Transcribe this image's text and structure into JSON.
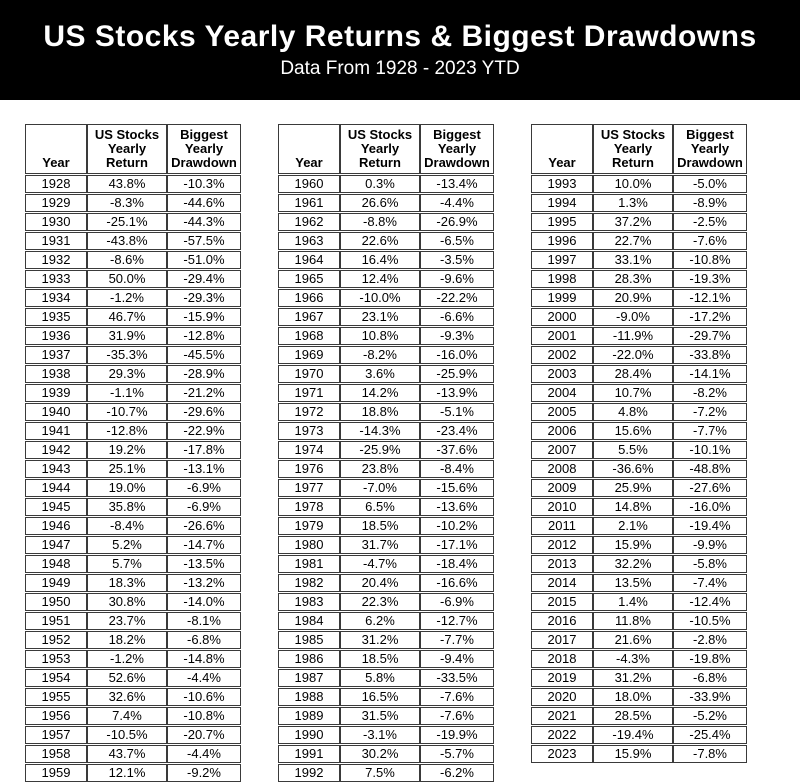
{
  "header": {
    "title": "US Stocks Yearly Returns & Biggest Drawdowns",
    "subtitle": "Data From 1928 - 2023 YTD"
  },
  "colors": {
    "positive_cell": "#d8f0cd",
    "negative_cell": "#f4b8ba",
    "banner_bg": "#000000",
    "banner_text": "#ffffff",
    "cell_border": "#3a3a3a",
    "highlight_year_bg": "#000000",
    "highlight_year_text": "#ffffff"
  },
  "chart_data": {
    "type": "table",
    "title": "US Stocks Yearly Returns & Biggest Drawdowns",
    "subtitle": "Data From 1928 - 2023 YTD",
    "column_headers": [
      [
        "Year"
      ],
      [
        "US Stocks",
        "Yearly",
        "Return"
      ],
      [
        "Biggest",
        "Yearly",
        "Drawdown"
      ]
    ],
    "highlighted_year": "2023",
    "tables": [
      {
        "rows": [
          [
            "1928",
            "43.8%",
            "-10.3%"
          ],
          [
            "1929",
            "-8.3%",
            "-44.6%"
          ],
          [
            "1930",
            "-25.1%",
            "-44.3%"
          ],
          [
            "1931",
            "-43.8%",
            "-57.5%"
          ],
          [
            "1932",
            "-8.6%",
            "-51.0%"
          ],
          [
            "1933",
            "50.0%",
            "-29.4%"
          ],
          [
            "1934",
            "-1.2%",
            "-29.3%"
          ],
          [
            "1935",
            "46.7%",
            "-15.9%"
          ],
          [
            "1936",
            "31.9%",
            "-12.8%"
          ],
          [
            "1937",
            "-35.3%",
            "-45.5%"
          ],
          [
            "1938",
            "29.3%",
            "-28.9%"
          ],
          [
            "1939",
            "-1.1%",
            "-21.2%"
          ],
          [
            "1940",
            "-10.7%",
            "-29.6%"
          ],
          [
            "1941",
            "-12.8%",
            "-22.9%"
          ],
          [
            "1942",
            "19.2%",
            "-17.8%"
          ],
          [
            "1943",
            "25.1%",
            "-13.1%"
          ],
          [
            "1944",
            "19.0%",
            "-6.9%"
          ],
          [
            "1945",
            "35.8%",
            "-6.9%"
          ],
          [
            "1946",
            "-8.4%",
            "-26.6%"
          ],
          [
            "1947",
            "5.2%",
            "-14.7%"
          ],
          [
            "1948",
            "5.7%",
            "-13.5%"
          ],
          [
            "1949",
            "18.3%",
            "-13.2%"
          ],
          [
            "1950",
            "30.8%",
            "-14.0%"
          ],
          [
            "1951",
            "23.7%",
            "-8.1%"
          ],
          [
            "1952",
            "18.2%",
            "-6.8%"
          ],
          [
            "1953",
            "-1.2%",
            "-14.8%"
          ],
          [
            "1954",
            "52.6%",
            "-4.4%"
          ],
          [
            "1955",
            "32.6%",
            "-10.6%"
          ],
          [
            "1956",
            "7.4%",
            "-10.8%"
          ],
          [
            "1957",
            "-10.5%",
            "-20.7%"
          ],
          [
            "1958",
            "43.7%",
            "-4.4%"
          ],
          [
            "1959",
            "12.1%",
            "-9.2%"
          ]
        ]
      },
      {
        "rows": [
          [
            "1960",
            "0.3%",
            "-13.4%"
          ],
          [
            "1961",
            "26.6%",
            "-4.4%"
          ],
          [
            "1962",
            "-8.8%",
            "-26.9%"
          ],
          [
            "1963",
            "22.6%",
            "-6.5%"
          ],
          [
            "1964",
            "16.4%",
            "-3.5%"
          ],
          [
            "1965",
            "12.4%",
            "-9.6%"
          ],
          [
            "1966",
            "-10.0%",
            "-22.2%"
          ],
          [
            "1967",
            "23.1%",
            "-6.6%"
          ],
          [
            "1968",
            "10.8%",
            "-9.3%"
          ],
          [
            "1969",
            "-8.2%",
            "-16.0%"
          ],
          [
            "1970",
            "3.6%",
            "-25.9%"
          ],
          [
            "1971",
            "14.2%",
            "-13.9%"
          ],
          [
            "1972",
            "18.8%",
            "-5.1%"
          ],
          [
            "1973",
            "-14.3%",
            "-23.4%"
          ],
          [
            "1974",
            "-25.9%",
            "-37.6%"
          ],
          [
            "1976",
            "23.8%",
            "-8.4%"
          ],
          [
            "1977",
            "-7.0%",
            "-15.6%"
          ],
          [
            "1978",
            "6.5%",
            "-13.6%"
          ],
          [
            "1979",
            "18.5%",
            "-10.2%"
          ],
          [
            "1980",
            "31.7%",
            "-17.1%"
          ],
          [
            "1981",
            "-4.7%",
            "-18.4%"
          ],
          [
            "1982",
            "20.4%",
            "-16.6%"
          ],
          [
            "1983",
            "22.3%",
            "-6.9%"
          ],
          [
            "1984",
            "6.2%",
            "-12.7%"
          ],
          [
            "1985",
            "31.2%",
            "-7.7%"
          ],
          [
            "1986",
            "18.5%",
            "-9.4%"
          ],
          [
            "1987",
            "5.8%",
            "-33.5%"
          ],
          [
            "1988",
            "16.5%",
            "-7.6%"
          ],
          [
            "1989",
            "31.5%",
            "-7.6%"
          ],
          [
            "1990",
            "-3.1%",
            "-19.9%"
          ],
          [
            "1991",
            "30.2%",
            "-5.7%"
          ],
          [
            "1992",
            "7.5%",
            "-6.2%"
          ]
        ]
      },
      {
        "rows": [
          [
            "1993",
            "10.0%",
            "-5.0%"
          ],
          [
            "1994",
            "1.3%",
            "-8.9%"
          ],
          [
            "1995",
            "37.2%",
            "-2.5%"
          ],
          [
            "1996",
            "22.7%",
            "-7.6%"
          ],
          [
            "1997",
            "33.1%",
            "-10.8%"
          ],
          [
            "1998",
            "28.3%",
            "-19.3%"
          ],
          [
            "1999",
            "20.9%",
            "-12.1%"
          ],
          [
            "2000",
            "-9.0%",
            "-17.2%"
          ],
          [
            "2001",
            "-11.9%",
            "-29.7%"
          ],
          [
            "2002",
            "-22.0%",
            "-33.8%"
          ],
          [
            "2003",
            "28.4%",
            "-14.1%"
          ],
          [
            "2004",
            "10.7%",
            "-8.2%"
          ],
          [
            "2005",
            "4.8%",
            "-7.2%"
          ],
          [
            "2006",
            "15.6%",
            "-7.7%"
          ],
          [
            "2007",
            "5.5%",
            "-10.1%"
          ],
          [
            "2008",
            "-36.6%",
            "-48.8%"
          ],
          [
            "2009",
            "25.9%",
            "-27.6%"
          ],
          [
            "2010",
            "14.8%",
            "-16.0%"
          ],
          [
            "2011",
            "2.1%",
            "-19.4%"
          ],
          [
            "2012",
            "15.9%",
            "-9.9%"
          ],
          [
            "2013",
            "32.2%",
            "-5.8%"
          ],
          [
            "2014",
            "13.5%",
            "-7.4%"
          ],
          [
            "2015",
            "1.4%",
            "-12.4%"
          ],
          [
            "2016",
            "11.8%",
            "-10.5%"
          ],
          [
            "2017",
            "21.6%",
            "-2.8%"
          ],
          [
            "2018",
            "-4.3%",
            "-19.8%"
          ],
          [
            "2019",
            "31.2%",
            "-6.8%"
          ],
          [
            "2020",
            "18.0%",
            "-33.9%"
          ],
          [
            "2021",
            "28.5%",
            "-5.2%"
          ],
          [
            "2022",
            "-19.4%",
            "-25.4%"
          ],
          [
            "2023",
            "15.9%",
            "-7.8%"
          ]
        ]
      }
    ]
  }
}
